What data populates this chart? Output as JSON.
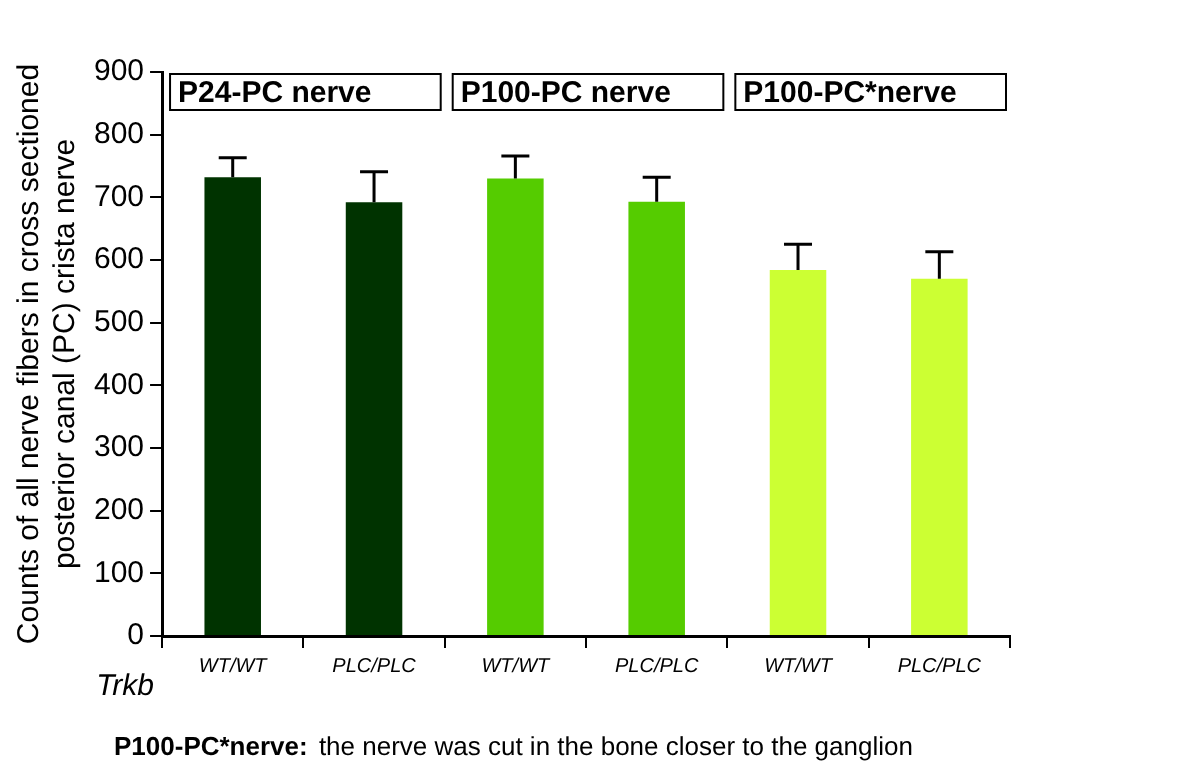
{
  "chart_data": {
    "type": "bar",
    "ylabel": "Counts of all nerve fibers in cross sectioned\nposterior canal (PC) crista nerve",
    "xlabel": "Trkb",
    "categories": [
      "WT/WT",
      "PLC/PLC",
      "WT/WT",
      "PLC/PLC",
      "WT/WT",
      "PLC/PLC"
    ],
    "series": [
      {
        "values": [
          732,
          692,
          730,
          693,
          584,
          570
        ],
        "colors": [
          "#003300",
          "#003300",
          "#55cc00",
          "#55cc00",
          "#ccff33",
          "#ccff33"
        ],
        "errors": [
          [
            732,
            763
          ],
          [
            692,
            741
          ],
          [
            730,
            766
          ],
          [
            693,
            732
          ],
          [
            584,
            625
          ],
          [
            570,
            613
          ]
        ]
      }
    ],
    "ylim": [
      0,
      900
    ],
    "yticks": [
      0,
      100,
      200,
      300,
      400,
      500,
      600,
      700,
      800,
      900
    ],
    "grid": false,
    "legend": false,
    "annotations": [
      "P24-PC nerve",
      "P100-PC nerve",
      "P100-PC*nerve",
      "P100-PC*nerve: the nerve was cut in the bone closer to the ganglion"
    ]
  }
}
